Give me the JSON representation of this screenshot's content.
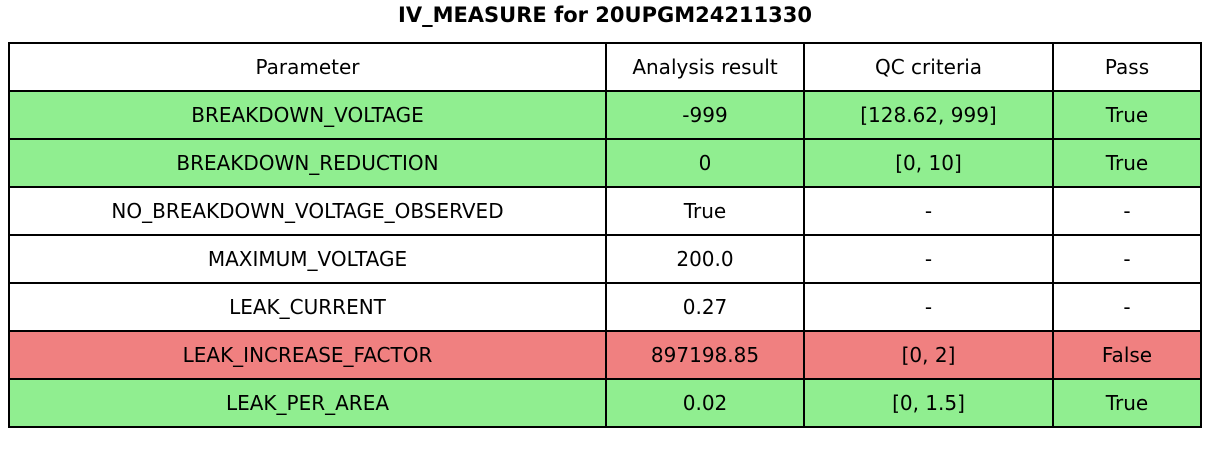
{
  "title": "IV_MEASURE for 20UPGM24211330",
  "chart_data": {
    "type": "table",
    "title": "IV_MEASURE for 20UPGM24211330",
    "columns": [
      "Parameter",
      "Analysis result",
      "QC criteria",
      "Pass"
    ],
    "rows": [
      {
        "parameter": "BREAKDOWN_VOLTAGE",
        "analysis_result": "-999",
        "qc_criteria": "[128.62, 999]",
        "pass": "True",
        "status": "pass"
      },
      {
        "parameter": "BREAKDOWN_REDUCTION",
        "analysis_result": "0",
        "qc_criteria": "[0, 10]",
        "pass": "True",
        "status": "pass"
      },
      {
        "parameter": "NO_BREAKDOWN_VOLTAGE_OBSERVED",
        "analysis_result": "True",
        "qc_criteria": "-",
        "pass": "-",
        "status": "neutral"
      },
      {
        "parameter": "MAXIMUM_VOLTAGE",
        "analysis_result": "200.0",
        "qc_criteria": "-",
        "pass": "-",
        "status": "neutral"
      },
      {
        "parameter": "LEAK_CURRENT",
        "analysis_result": "0.27",
        "qc_criteria": "-",
        "pass": "-",
        "status": "neutral"
      },
      {
        "parameter": "LEAK_INCREASE_FACTOR",
        "analysis_result": "897198.85",
        "qc_criteria": "[0, 2]",
        "pass": "False",
        "status": "fail"
      },
      {
        "parameter": "LEAK_PER_AREA",
        "analysis_result": "0.02",
        "qc_criteria": "[0, 1.5]",
        "pass": "True",
        "status": "pass"
      }
    ]
  },
  "colors": {
    "pass_row": "#90EE90",
    "fail_row": "#F08080",
    "neutral_row": "#FFFFFF",
    "border": "#000000",
    "title_text": "#000000"
  }
}
